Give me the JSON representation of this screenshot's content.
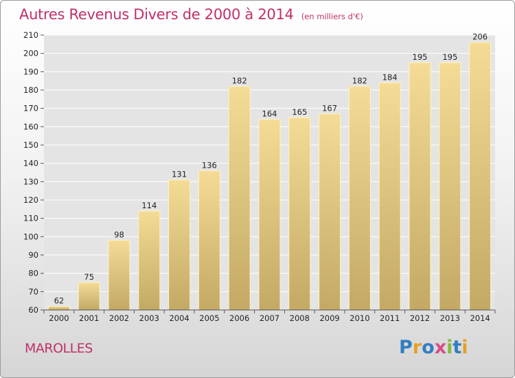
{
  "header": {
    "title": "Autres Revenus Divers de 2000 à 2014",
    "subtitle": "(en milliers d'€)"
  },
  "footer": {
    "place": "MAROLLES",
    "logo": "Proxiti"
  },
  "colors": {
    "title": "#c0306a",
    "bar_light": "#f4dc96",
    "bar_dark": "#c3a964",
    "grid": "#ffffff",
    "logo_letters": [
      "#2f7fc1",
      "#e6a023",
      "#2f7fc1",
      "#d64c8a",
      "#86b840",
      "#2f7fc1",
      "#e6a023"
    ]
  },
  "chart_data": {
    "type": "bar",
    "categories": [
      "2000",
      "2001",
      "2002",
      "2003",
      "2004",
      "2005",
      "2006",
      "2007",
      "2008",
      "2009",
      "2010",
      "2011",
      "2012",
      "2013",
      "2014"
    ],
    "values": [
      62,
      75,
      98,
      114,
      131,
      136,
      182,
      164,
      165,
      167,
      182,
      184,
      195,
      195,
      206
    ],
    "yticks": [
      60,
      70,
      80,
      90,
      100,
      110,
      120,
      130,
      140,
      150,
      160,
      170,
      180,
      190,
      200,
      210
    ],
    "ylim": [
      60,
      210
    ],
    "title": "Autres Revenus Divers de 2000 à 2014",
    "xlabel": "",
    "ylabel": "",
    "grid": true,
    "data_labels": true
  }
}
